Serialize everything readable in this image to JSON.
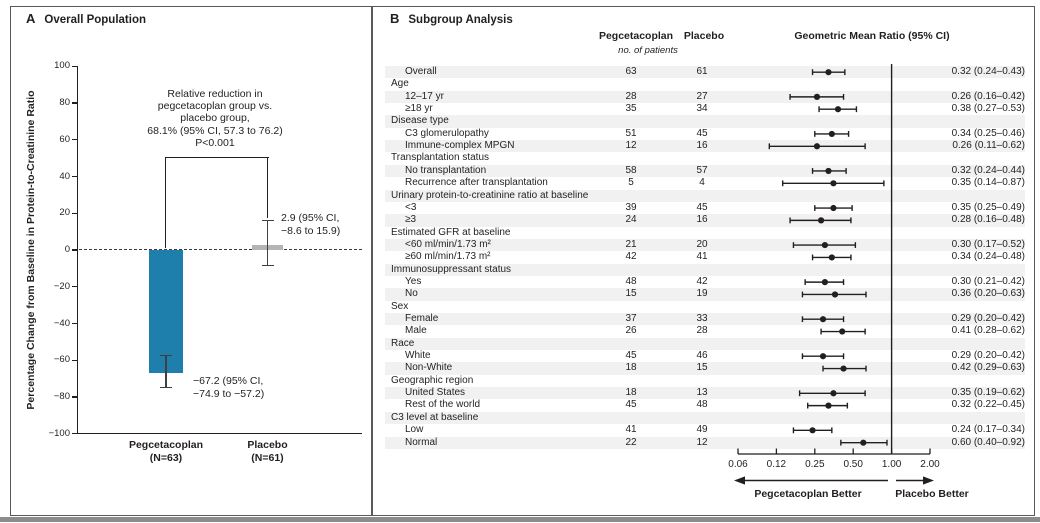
{
  "figure": {
    "panel_a_label": "A",
    "panel_b_label": "B"
  },
  "chart_data": [
    {
      "type": "bar",
      "panel": "A",
      "title": "Overall Population",
      "ylabel": "Percentage Change from Baseline in Protein-to-Creatinine Ratio",
      "ylim": [
        -100,
        100
      ],
      "ytick_step": 20,
      "zero_line": "dashed",
      "categories": [
        "Pegcetacoplan",
        "Placebo"
      ],
      "n_labels": [
        "(N=63)",
        "(N=61)"
      ],
      "values": [
        -67.2,
        2.9
      ],
      "ci": [
        [
          -74.9,
          -57.2
        ],
        [
          -8.6,
          15.9
        ]
      ],
      "bar_colors": [
        "#1f7fac",
        "#b4b4b6"
      ],
      "annotations": [
        [
          "−67.2 (95% CI,",
          "−74.9 to −57.2)"
        ],
        [
          "2.9 (95% CI,",
          "−8.6 to 15.9)"
        ]
      ],
      "comparison_lines": [
        "Relative reduction in",
        "pegcetacoplan group vs.",
        "placebo group,",
        "68.1% (95% CI, 57.3 to 76.2)",
        "P<0.001"
      ]
    },
    {
      "type": "forest",
      "panel": "B",
      "title": "Subgroup Analysis",
      "col_headers": {
        "pegcetacoplan": "Pegcetacoplan",
        "placebo": "Placebo",
        "unit": "no. of patients",
        "ratio": "Geometric Mean Ratio (95% CI)"
      },
      "x_scale": "log2",
      "x_ticks": [
        0.0625,
        0.125,
        0.25,
        0.5,
        1.0,
        2.0
      ],
      "x_tick_labels": [
        "0.06",
        "0.12",
        "0.25",
        "0.50",
        "1.00",
        "2.00"
      ],
      "ref_line": 1.0,
      "left_label": "Pegcetacoplan Better",
      "right_label": "Placebo Better",
      "rows": [
        {
          "label": "Overall",
          "peg": "63",
          "pla": "61",
          "est": 0.32,
          "lo": 0.24,
          "hi": 0.43,
          "ci_text": "0.32 (0.24–0.43)"
        },
        {
          "label": "Age",
          "header": true
        },
        {
          "label": "12–17 yr",
          "peg": "28",
          "pla": "27",
          "est": 0.26,
          "lo": 0.16,
          "hi": 0.42,
          "ci_text": "0.26 (0.16–0.42)"
        },
        {
          "label": "≥18 yr",
          "peg": "35",
          "pla": "34",
          "est": 0.38,
          "lo": 0.27,
          "hi": 0.53,
          "ci_text": "0.38 (0.27–0.53)"
        },
        {
          "label": "Disease type",
          "header": true
        },
        {
          "label": "C3 glomerulopathy",
          "peg": "51",
          "pla": "45",
          "est": 0.34,
          "lo": 0.25,
          "hi": 0.46,
          "ci_text": "0.34 (0.25–0.46)"
        },
        {
          "label": "Immune-complex MPGN",
          "peg": "12",
          "pla": "16",
          "est": 0.26,
          "lo": 0.11,
          "hi": 0.62,
          "ci_text": "0.26 (0.11–0.62)"
        },
        {
          "label": "Transplantation status",
          "header": true
        },
        {
          "label": "No transplantation",
          "peg": "58",
          "pla": "57",
          "est": 0.32,
          "lo": 0.24,
          "hi": 0.44,
          "ci_text": "0.32 (0.24–0.44)"
        },
        {
          "label": "Recurrence after transplantation",
          "peg": "5",
          "pla": "4",
          "est": 0.35,
          "lo": 0.14,
          "hi": 0.87,
          "ci_text": "0.35 (0.14–0.87)"
        },
        {
          "label": "Urinary protein-to-creatinine ratio at baseline",
          "header": true
        },
        {
          "label": "<3",
          "peg": "39",
          "pla": "45",
          "est": 0.35,
          "lo": 0.25,
          "hi": 0.49,
          "ci_text": "0.35 (0.25–0.49)"
        },
        {
          "label": "≥3",
          "peg": "24",
          "pla": "16",
          "est": 0.28,
          "lo": 0.16,
          "hi": 0.48,
          "ci_text": "0.28 (0.16–0.48)"
        },
        {
          "label": "Estimated GFR at baseline",
          "header": true
        },
        {
          "label": "<60 ml/min/1.73 m²",
          "peg": "21",
          "pla": "20",
          "est": 0.3,
          "lo": 0.17,
          "hi": 0.52,
          "ci_text": "0.30 (0.17–0.52)"
        },
        {
          "label": "≥60 ml/min/1.73 m²",
          "peg": "42",
          "pla": "41",
          "est": 0.34,
          "lo": 0.24,
          "hi": 0.48,
          "ci_text": "0.34 (0.24–0.48)"
        },
        {
          "label": "Immunosuppressant status",
          "header": true
        },
        {
          "label": "Yes",
          "peg": "48",
          "pla": "42",
          "est": 0.3,
          "lo": 0.21,
          "hi": 0.42,
          "ci_text": "0.30 (0.21–0.42)"
        },
        {
          "label": "No",
          "peg": "15",
          "pla": "19",
          "est": 0.36,
          "lo": 0.2,
          "hi": 0.63,
          "ci_text": "0.36 (0.20–0.63)"
        },
        {
          "label": "Sex",
          "header": true
        },
        {
          "label": "Female",
          "peg": "37",
          "pla": "33",
          "est": 0.29,
          "lo": 0.2,
          "hi": 0.42,
          "ci_text": "0.29 (0.20–0.42)"
        },
        {
          "label": "Male",
          "peg": "26",
          "pla": "28",
          "est": 0.41,
          "lo": 0.28,
          "hi": 0.62,
          "ci_text": "0.41 (0.28–0.62)"
        },
        {
          "label": "Race",
          "header": true
        },
        {
          "label": "White",
          "peg": "45",
          "pla": "46",
          "est": 0.29,
          "lo": 0.2,
          "hi": 0.42,
          "ci_text": "0.29 (0.20–0.42)"
        },
        {
          "label": "Non-White",
          "peg": "18",
          "pla": "15",
          "est": 0.42,
          "lo": 0.29,
          "hi": 0.63,
          "ci_text": "0.42 (0.29–0.63)"
        },
        {
          "label": "Geographic region",
          "header": true
        },
        {
          "label": "United States",
          "peg": "18",
          "pla": "13",
          "est": 0.35,
          "lo": 0.19,
          "hi": 0.62,
          "ci_text": "0.35 (0.19–0.62)"
        },
        {
          "label": "Rest of the world",
          "peg": "45",
          "pla": "48",
          "est": 0.32,
          "lo": 0.22,
          "hi": 0.45,
          "ci_text": "0.32 (0.22–0.45)"
        },
        {
          "label": "C3 level at baseline",
          "header": true
        },
        {
          "label": "Low",
          "peg": "41",
          "pla": "49",
          "est": 0.24,
          "lo": 0.17,
          "hi": 0.34,
          "ci_text": "0.24 (0.17–0.34)"
        },
        {
          "label": "Normal",
          "peg": "22",
          "pla": "12",
          "est": 0.6,
          "lo": 0.4,
          "hi": 0.92,
          "ci_text": "0.60 (0.40–0.92)"
        }
      ]
    }
  ]
}
